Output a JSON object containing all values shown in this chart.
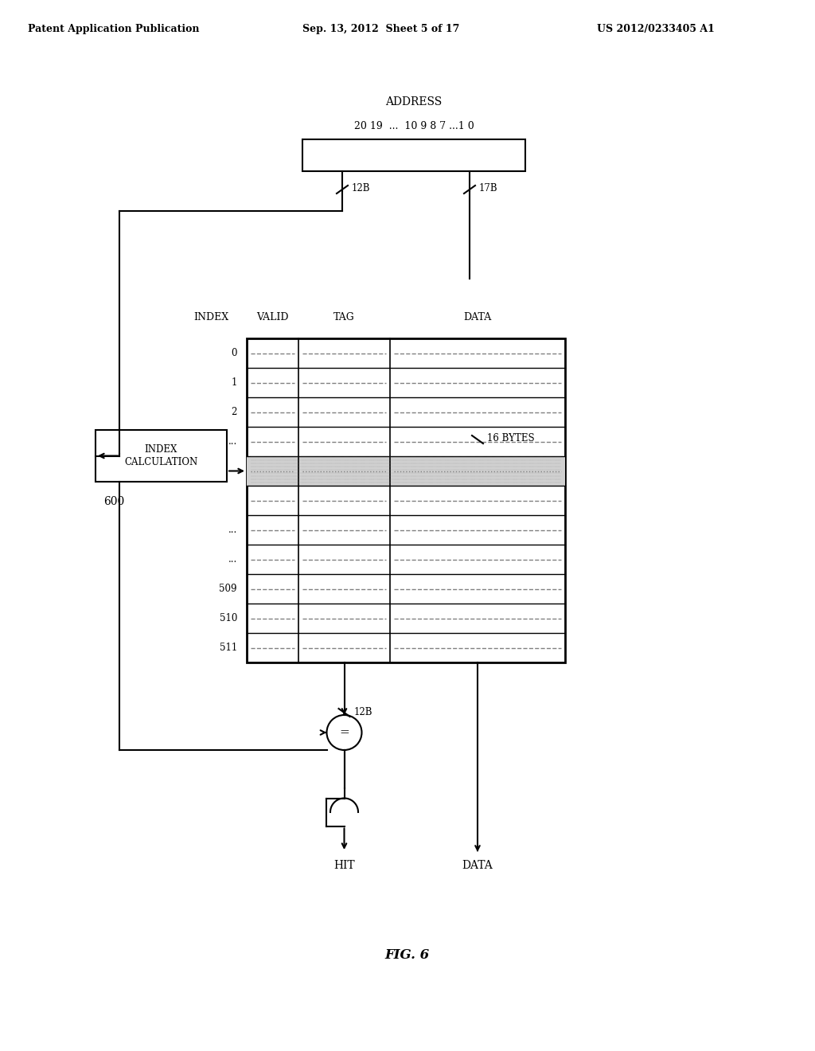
{
  "header_left": "Patent Application Publication",
  "header_mid": "Sep. 13, 2012  Sheet 5 of 17",
  "header_right": "US 2012/0233405 A1",
  "address_label": "ADDRESS",
  "addr_bits": "20 19  ...  10 9 8 7 ...1 0",
  "label_12B_top": "12B",
  "label_17B_top": "17B",
  "col_headers": [
    "INDEX",
    "VALID",
    "TAG",
    "DATA"
  ],
  "row_labels": [
    "0",
    "1",
    "2",
    "...",
    "",
    "",
    "...",
    "...",
    "509",
    "510",
    "511"
  ],
  "label_12B_bot": "12B",
  "label_16bytes": "16 BYTES",
  "index_calc_text": "INDEX\nCALCULATION",
  "index_calc_label": "600",
  "fig_label": "FIG. 6",
  "hit_label": "HIT",
  "data_label": "DATA",
  "bg_color": "#ffffff",
  "fg_color": "#000000",
  "highlighted_row": 4
}
